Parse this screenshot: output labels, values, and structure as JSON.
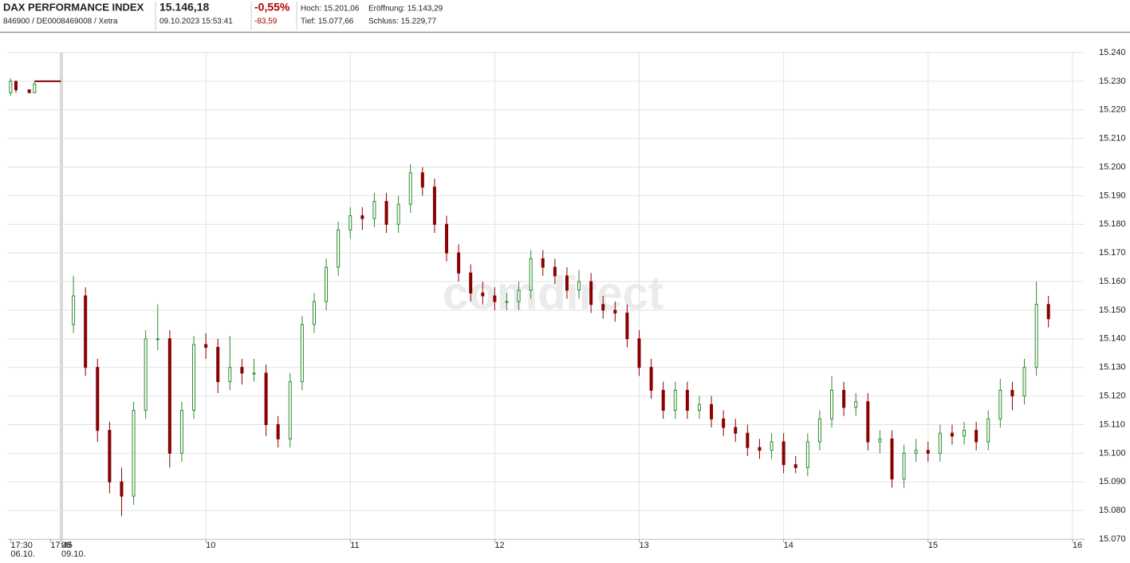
{
  "header": {
    "title": "DAX PERFORMANCE INDEX",
    "price": "15.146,18",
    "change_pct": "-0,55%",
    "ids": "846900 / DE0008469008 / Xetra",
    "timestamp": "09.10.2023 15:53:41",
    "change_abs": "-83,59",
    "high": "Hoch: 15.201,06",
    "open": "Eröffnung: 15.143,29",
    "low": "Tief: 15.077,66",
    "close": "Schluss: 15.229,77"
  },
  "watermark": "comdirect",
  "chart_data": [
    {
      "type": "candlestick",
      "date_label": "06.10.",
      "x": [
        1050,
        1052,
        1057,
        1059
      ],
      "open": [
        15226,
        15230,
        15227,
        15226
      ],
      "high": [
        15231,
        15230,
        15227,
        15230
      ],
      "low": [
        15225,
        15226,
        15226,
        15226
      ],
      "close": [
        15230,
        15227,
        15226,
        15229
      ],
      "closing_line": {
        "x": [
          1059,
          1069
        ],
        "values": [
          15230,
          15230
        ]
      },
      "up_color": "#2e8b2e",
      "down_color": "#8b0000",
      "xlim": [
        1049,
        1070
      ],
      "xticks": [
        {
          "value": 1050,
          "label": "17:30"
        },
        {
          "value": 1065,
          "label": "17:45"
        }
      ],
      "ylim": [
        15070,
        15240
      ]
    },
    {
      "type": "candlestick",
      "date_label": "09.10.",
      "x": [
        545,
        550,
        555,
        560,
        565,
        570,
        575,
        580,
        585,
        590,
        595,
        600,
        605,
        610,
        615,
        620,
        625,
        630,
        635,
        640,
        645,
        650,
        655,
        660,
        665,
        670,
        675,
        680,
        685,
        690,
        695,
        700,
        705,
        710,
        715,
        720,
        725,
        730,
        735,
        740,
        745,
        750,
        755,
        760,
        765,
        770,
        775,
        780,
        785,
        790,
        795,
        800,
        805,
        810,
        815,
        820,
        825,
        830,
        835,
        840,
        845,
        850,
        855,
        860,
        865,
        870,
        875,
        880,
        885,
        890,
        895,
        900,
        905,
        910,
        915,
        920,
        925,
        930,
        935,
        940,
        945,
        950
      ],
      "open": [
        15145,
        15155,
        15130,
        15108,
        15090,
        15085,
        15115,
        15140,
        15140,
        15100,
        15115,
        15138,
        15137,
        15125,
        15130,
        15128,
        15128,
        15110,
        15105,
        15125,
        15145,
        15153,
        15165,
        15178,
        15183,
        15182,
        15188,
        15180,
        15187,
        15198,
        15193,
        15180,
        15170,
        15163,
        15156,
        15155,
        15153,
        15153,
        15157,
        15168,
        15165,
        15162,
        15157,
        15160,
        15152,
        15150,
        15149,
        15140,
        15130,
        15122,
        15115,
        15122,
        15115,
        15117,
        15112,
        15109,
        15107,
        15102,
        15101,
        15104,
        15096,
        15095,
        15104,
        15112,
        15122,
        15116,
        15118,
        15104,
        15105,
        15091,
        15100,
        15101,
        15100,
        15107,
        15106,
        15108,
        15104,
        15112,
        15122,
        15120,
        15130,
        15152
      ],
      "high": [
        15162,
        15158,
        15133,
        15111,
        15095,
        15118,
        15143,
        15152,
        15143,
        15118,
        15141,
        15142,
        15140,
        15141,
        15133,
        15133,
        15131,
        15113,
        15128,
        15148,
        15156,
        15168,
        15181,
        15186,
        15186,
        15191,
        15191,
        15190,
        15201,
        15200,
        15196,
        15183,
        15173,
        15166,
        15160,
        15158,
        15156,
        15160,
        15171,
        15171,
        15168,
        15165,
        15164,
        15163,
        15155,
        15153,
        15152,
        15143,
        15133,
        15125,
        15125,
        15125,
        15120,
        15120,
        15115,
        15112,
        15110,
        15105,
        15107,
        15107,
        15099,
        15107,
        15115,
        15127,
        15125,
        15121,
        15121,
        15108,
        15108,
        15103,
        15105,
        15104,
        15110,
        15110,
        15111,
        15111,
        15115,
        15126,
        15125,
        15133,
        15160,
        15155
      ],
      "low": [
        15142,
        15127,
        15104,
        15086,
        15078,
        15082,
        15112,
        15136,
        15095,
        15097,
        15112,
        15133,
        15121,
        15122,
        15124,
        15125,
        15106,
        15102,
        15102,
        15122,
        15142,
        15150,
        15162,
        15175,
        15178,
        15179,
        15177,
        15177,
        15184,
        15190,
        15177,
        15167,
        15160,
        15153,
        15152,
        15150,
        15150,
        15150,
        15154,
        15162,
        15159,
        15154,
        15154,
        15149,
        15147,
        15146,
        15137,
        15127,
        15119,
        15112,
        15112,
        15112,
        15112,
        15109,
        15106,
        15104,
        15099,
        15098,
        15098,
        15093,
        15093,
        15092,
        15101,
        15109,
        15113,
        15113,
        15101,
        15100,
        15088,
        15088,
        15097,
        15097,
        15097,
        15103,
        15103,
        15101,
        15101,
        15109,
        15115,
        15117,
        15127,
        15144
      ],
      "close": [
        15155,
        15130,
        15108,
        15090,
        15085,
        15115,
        15140,
        15140,
        15100,
        15115,
        15138,
        15137,
        15125,
        15130,
        15128,
        15128,
        15110,
        15105,
        15125,
        15145,
        15153,
        15165,
        15178,
        15183,
        15182,
        15188,
        15180,
        15187,
        15198,
        15193,
        15180,
        15170,
        15163,
        15156,
        15155,
        15153,
        15153,
        15157,
        15168,
        15165,
        15162,
        15157,
        15160,
        15152,
        15150,
        15149,
        15140,
        15130,
        15122,
        15115,
        15122,
        15115,
        15117,
        15112,
        15109,
        15107,
        15102,
        15101,
        15104,
        15096,
        15095,
        15104,
        15112,
        15122,
        15116,
        15118,
        15104,
        15105,
        15091,
        15100,
        15101,
        15100,
        15107,
        15106,
        15108,
        15104,
        15112,
        15122,
        15120,
        15130,
        15152,
        15147
      ],
      "up_color": "#2e8b2e",
      "down_color": "#8b0000",
      "xlim": [
        540,
        965
      ],
      "xticks": [
        {
          "value": 540,
          "label": "09"
        },
        {
          "value": 600,
          "label": "10"
        },
        {
          "value": 660,
          "label": "11"
        },
        {
          "value": 720,
          "label": "12"
        },
        {
          "value": 780,
          "label": "13"
        },
        {
          "value": 840,
          "label": "14"
        },
        {
          "value": 900,
          "label": "15"
        },
        {
          "value": 960,
          "label": "16"
        }
      ],
      "ylim": [
        15070,
        15240
      ],
      "yticks": [
        {
          "value": 15070,
          "label": "15.070"
        },
        {
          "value": 15080,
          "label": "15.080"
        },
        {
          "value": 15090,
          "label": "15.090"
        },
        {
          "value": 15100,
          "label": "15.100"
        },
        {
          "value": 15110,
          "label": "15.110"
        },
        {
          "value": 15120,
          "label": "15.120"
        },
        {
          "value": 15130,
          "label": "15.130"
        },
        {
          "value": 15140,
          "label": "15.140"
        },
        {
          "value": 15150,
          "label": "15.150"
        },
        {
          "value": 15160,
          "label": "15.160"
        },
        {
          "value": 15170,
          "label": "15.170"
        },
        {
          "value": 15180,
          "label": "15.180"
        },
        {
          "value": 15190,
          "label": "15.190"
        },
        {
          "value": 15200,
          "label": "15.200"
        },
        {
          "value": 15210,
          "label": "15.210"
        },
        {
          "value": 15220,
          "label": "15.220"
        },
        {
          "value": 15230,
          "label": "15.230"
        },
        {
          "value": 15240,
          "label": "15.240"
        }
      ],
      "grid": true
    }
  ]
}
